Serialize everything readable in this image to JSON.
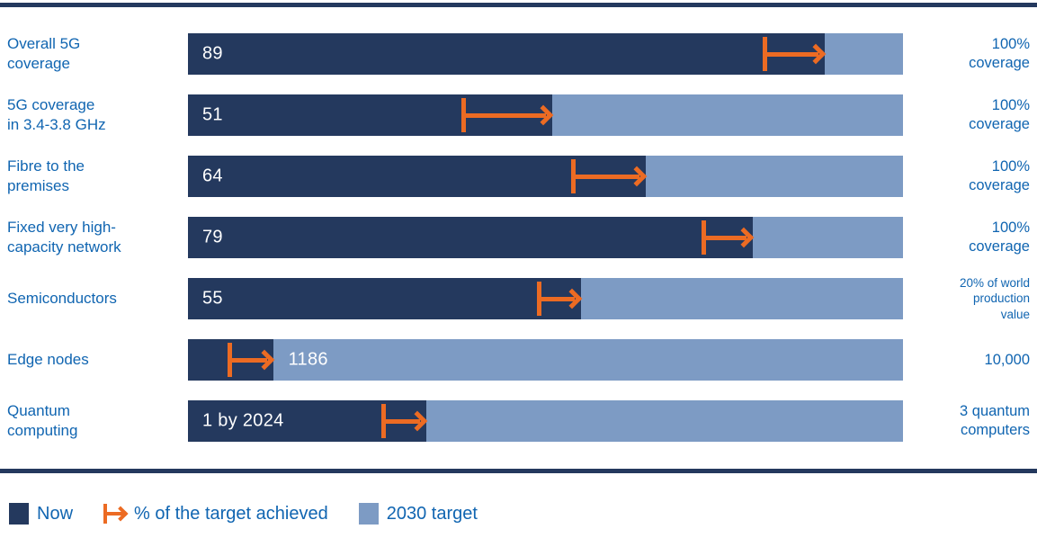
{
  "colors": {
    "now_navy": "#24395E",
    "target_blue": "#7D9BC4",
    "arrow_orange": "#EC6B23",
    "text_blue": "#1065B1",
    "value_white": "#FFFFFF"
  },
  "legend": {
    "now_label": "Now",
    "arrow_label": "% of the target achieved",
    "target_label": "2030 target"
  },
  "chart_data": {
    "type": "bar",
    "orientation": "horizontal",
    "description": "Progress toward 2030 digital targets: dark bar = current value (Now), light bar = remainder to 2030 target, orange arrow = % of the target achieved",
    "legend_position": "bottom",
    "rows": [
      {
        "label": "Overall 5G\ncoverage",
        "value_label": "89",
        "fill_pct": 89,
        "arrow_from_pct": 80.4,
        "target_label": "100%\ncoverage",
        "target_small": false,
        "value_outside": false
      },
      {
        "label": "5G coverage\nin 3.4-3.8 GHz",
        "value_label": "51",
        "fill_pct": 51,
        "arrow_from_pct": 38.3,
        "target_label": "100%\ncoverage",
        "target_small": false,
        "value_outside": false
      },
      {
        "label": "Fibre to the\npremises",
        "value_label": "64",
        "fill_pct": 64,
        "arrow_from_pct": 53.6,
        "target_label": "100%\ncoverage",
        "target_small": false,
        "value_outside": false
      },
      {
        "label": "Fixed very high-\ncapacity network",
        "value_label": "79",
        "fill_pct": 79,
        "arrow_from_pct": 71.8,
        "target_label": "100%\ncoverage",
        "target_small": false,
        "value_outside": false
      },
      {
        "label": "Semiconductors",
        "value_label": "55",
        "fill_pct": 55,
        "arrow_from_pct": 48.8,
        "target_label": "20% of world\nproduction\nvalue",
        "target_small": true,
        "value_outside": false
      },
      {
        "label": "Edge nodes",
        "value_label": "1186",
        "fill_pct": 11.9,
        "arrow_from_pct": 5.5,
        "target_label": "10,000",
        "target_small": false,
        "value_outside": true
      },
      {
        "label": "Quantum\ncomputing",
        "value_label": "1 by 2024",
        "fill_pct": 33.3,
        "arrow_from_pct": 27.1,
        "target_label": "3 quantum\ncomputers",
        "target_small": false,
        "value_outside": false
      }
    ]
  }
}
